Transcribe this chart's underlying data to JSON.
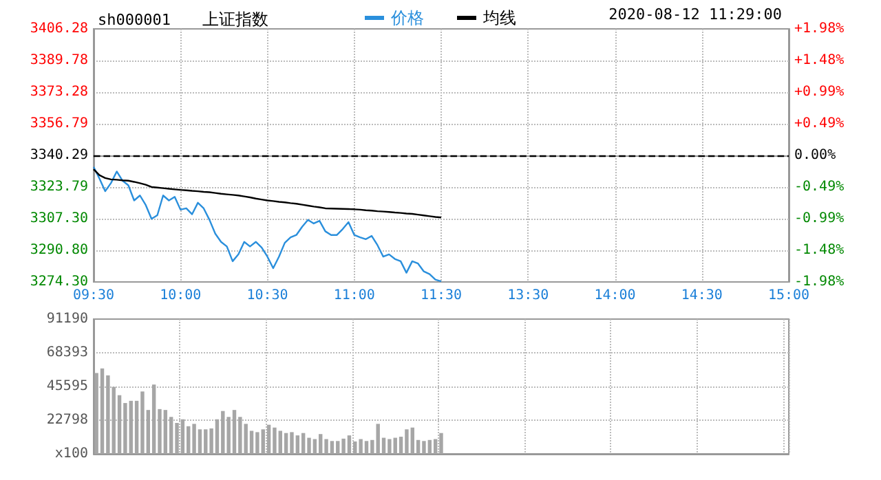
{
  "chart_data": [
    {
      "type": "line",
      "title": "上证指数",
      "subtitle": "sh000001",
      "annotations": [
        "2020-08-12 11:29:00"
      ],
      "categories": [
        "09:30",
        null,
        null,
        null,
        null,
        null,
        null,
        null,
        null,
        null,
        null,
        null,
        null,
        null,
        null,
        "10:00",
        null,
        null,
        null,
        null,
        null,
        null,
        null,
        null,
        null,
        null,
        null,
        null,
        null,
        null,
        "10:30",
        null,
        null,
        null,
        null,
        null,
        null,
        null,
        null,
        null,
        null,
        null,
        null,
        null,
        null,
        "11:00",
        null,
        null,
        null,
        null,
        null,
        null,
        null,
        null,
        null,
        null,
        null,
        null,
        null,
        null,
        "11:30",
        null,
        null,
        null,
        null,
        null,
        null,
        null,
        null,
        null,
        null,
        null,
        null,
        null,
        null,
        "13:30",
        null,
        null,
        null,
        null,
        null,
        null,
        null,
        null,
        null,
        null,
        null,
        null,
        null,
        null,
        "14:00",
        null,
        null,
        null,
        null,
        null,
        null,
        null,
        null,
        null,
        null,
        null,
        null,
        null,
        null,
        "14:30",
        null,
        null,
        null,
        null,
        null,
        null,
        null,
        null,
        null,
        null,
        null,
        null,
        null,
        null,
        "15:00"
      ],
      "series": [
        {
          "name": "价格",
          "color": "#2a8fdc",
          "values": [
            3334.3,
            3328.3,
            3321.6,
            3325.9,
            3331.9,
            3327.1,
            3324.7,
            3316.8,
            3319.4,
            3314.4,
            3307.2,
            3309.1,
            3319.4,
            3316.8,
            3318.7,
            3312.0,
            3312.7,
            3309.6,
            3315.6,
            3312.7,
            3306.7,
            3299.5,
            3295.2,
            3292.8,
            3285.1,
            3288.7,
            3295.2,
            3292.8,
            3295.2,
            3292.3,
            3287.5,
            3281.5,
            3287.5,
            3294.7,
            3297.6,
            3298.8,
            3303.1,
            3306.7,
            3304.8,
            3306.2,
            3300.7,
            3298.8,
            3298.8,
            3301.9,
            3305.5,
            3298.8,
            3297.6,
            3296.6,
            3298.3,
            3293.5,
            3287.5,
            3288.7,
            3286.3,
            3285.1,
            3279.1,
            3285.1,
            3283.9,
            3279.8,
            3278.4,
            3275.5,
            3274.6,
            null,
            null,
            null,
            null,
            null,
            null,
            null,
            null,
            null,
            null,
            null,
            null,
            null,
            null,
            null,
            null,
            null,
            null,
            null,
            null,
            null,
            null,
            null,
            null,
            null,
            null,
            null,
            null,
            null,
            null,
            null,
            null,
            null,
            null,
            null,
            null,
            null,
            null,
            null,
            null,
            null,
            null,
            null,
            null,
            null,
            null,
            null,
            null,
            null,
            null,
            null,
            null,
            null,
            null,
            null,
            null,
            null,
            null,
            null,
            null
          ]
        },
        {
          "name": "均线",
          "color": "#000000",
          "values": [
            3333.1,
            3330,
            3328.5,
            3327.8,
            3327.6,
            3327.3,
            3327.1,
            3326.5,
            3325.8,
            3325,
            3323.8,
            3323.5,
            3323.2,
            3322.9,
            3322.6,
            3322.3,
            3322.1,
            3321.8,
            3321.6,
            3321.3,
            3321.1,
            3320.7,
            3320.3,
            3320,
            3319.7,
            3319.4,
            3318.9,
            3318.4,
            3317.8,
            3317.3,
            3316.8,
            3316.5,
            3316.1,
            3315.8,
            3315.4,
            3315.1,
            3314.6,
            3314.1,
            3313.6,
            3313.2,
            3312.7,
            3312.6,
            3312.5,
            3312.4,
            3312.3,
            3312.2,
            3312,
            3311.7,
            3311.5,
            3311.2,
            3311,
            3310.8,
            3310.5,
            3310.3,
            3310,
            3309.8,
            3309.4,
            3309,
            3308.6,
            3308.2,
            3307.9,
            null,
            null,
            null,
            null,
            null,
            null,
            null,
            null,
            null,
            null,
            null,
            null,
            null,
            null,
            null,
            null,
            null,
            null,
            null,
            null,
            null,
            null,
            null,
            null,
            null,
            null,
            null,
            null,
            null,
            null,
            null,
            null,
            null,
            null,
            null,
            null,
            null,
            null,
            null,
            null,
            null,
            null,
            null,
            null,
            null,
            null,
            null,
            null,
            null,
            null,
            null,
            null,
            null,
            null,
            null,
            null,
            null,
            null,
            null,
            null
          ]
        }
      ],
      "ylim": [
        3274.3,
        3406.28
      ],
      "yticks": [
        {
          "value": 3274.3,
          "label": "3274.30"
        },
        {
          "value": 3290.8,
          "label": "3290.80"
        },
        {
          "value": 3307.3,
          "label": "3307.30"
        },
        3323.79,
        3340.29,
        3356.79,
        3373.28,
        3389.78,
        3406.28
      ],
      "y2lim": [
        -1.98,
        1.98
      ],
      "y2ticks": [
        {
          "value": -1.98,
          "label": "-1.98%"
        },
        {
          "value": -1.48,
          "label": "-1.48%"
        },
        {
          "value": -0.99,
          "label": "-0.99%"
        },
        {
          "value": -0.49,
          "label": "-0.49%"
        },
        {
          "value": 0,
          "label": "0.00%"
        },
        {
          "value": 0.49,
          "label": "+0.49%"
        },
        {
          "value": 0.99,
          "label": "+0.99%"
        },
        {
          "value": 1.48,
          "label": "+1.48%"
        },
        {
          "value": 1.98,
          "label": "+1.98%"
        }
      ],
      "ref_lines": [
        {
          "axis": "y",
          "value": 3340.29,
          "color": "#000000",
          "line_style": "dashed"
        }
      ],
      "grid": true,
      "legend": "top",
      "marker": "none"
    },
    {
      "type": "bar",
      "color": "#a6a6a6",
      "categories": [
        null,
        null,
        null,
        null,
        null,
        null,
        null,
        null,
        null,
        null,
        null,
        null,
        null,
        null,
        null,
        null,
        null,
        null,
        null,
        null,
        null,
        null,
        null,
        null,
        null,
        null,
        null,
        null,
        null,
        null,
        null,
        null,
        null,
        null,
        null,
        null,
        null,
        null,
        null,
        null,
        null,
        null,
        null,
        null,
        null,
        null,
        null,
        null,
        null,
        null,
        null,
        null,
        null,
        null,
        null,
        null,
        null,
        null,
        null,
        null,
        null,
        null,
        null,
        null,
        null,
        null,
        null,
        null,
        null,
        null,
        null,
        null,
        null,
        null,
        null,
        null,
        null,
        null,
        null,
        null,
        null,
        null,
        null,
        null,
        null,
        null,
        null,
        null,
        null,
        null,
        null,
        null,
        null,
        null,
        null,
        null,
        null,
        null,
        null,
        null,
        null,
        null,
        null,
        null,
        null,
        null,
        null,
        null,
        null,
        null,
        null,
        null,
        null,
        null,
        null,
        null,
        null,
        null,
        null,
        null,
        null
      ],
      "values": [
        54700,
        57800,
        53100,
        45300,
        39700,
        34400,
        35900,
        35900,
        42200,
        29700,
        46900,
        30300,
        29700,
        25000,
        20900,
        23400,
        18700,
        20300,
        16600,
        16600,
        17200,
        23400,
        29000,
        25000,
        29700,
        25000,
        20300,
        15600,
        14700,
        16600,
        19700,
        17800,
        15600,
        14100,
        14700,
        12500,
        14100,
        10900,
        10000,
        13400,
        10000,
        8700,
        8700,
        10300,
        12500,
        8400,
        10000,
        8700,
        9400,
        20300,
        10900,
        10000,
        10900,
        11600,
        16600,
        17800,
        9400,
        8700,
        9400,
        10000,
        14100,
        null,
        null,
        null,
        null,
        null,
        null,
        null,
        null,
        null,
        null,
        null,
        null,
        null,
        null,
        null,
        null,
        null,
        null,
        null,
        null,
        null,
        null,
        null,
        null,
        null,
        null,
        null,
        null,
        null,
        null,
        null,
        null,
        null,
        null,
        null,
        null,
        null,
        null,
        null,
        null,
        null,
        null,
        null,
        null,
        null,
        null,
        null,
        null,
        null,
        null,
        null,
        null,
        null,
        null,
        null,
        null,
        null,
        null,
        null,
        null
      ],
      "ylim": [
        0,
        91190
      ],
      "yticks": [
        {
          "value": 0,
          "label": "x100"
        },
        22798,
        45595,
        68393,
        91190
      ],
      "grid": true,
      "tick_labels": "y"
    }
  ]
}
